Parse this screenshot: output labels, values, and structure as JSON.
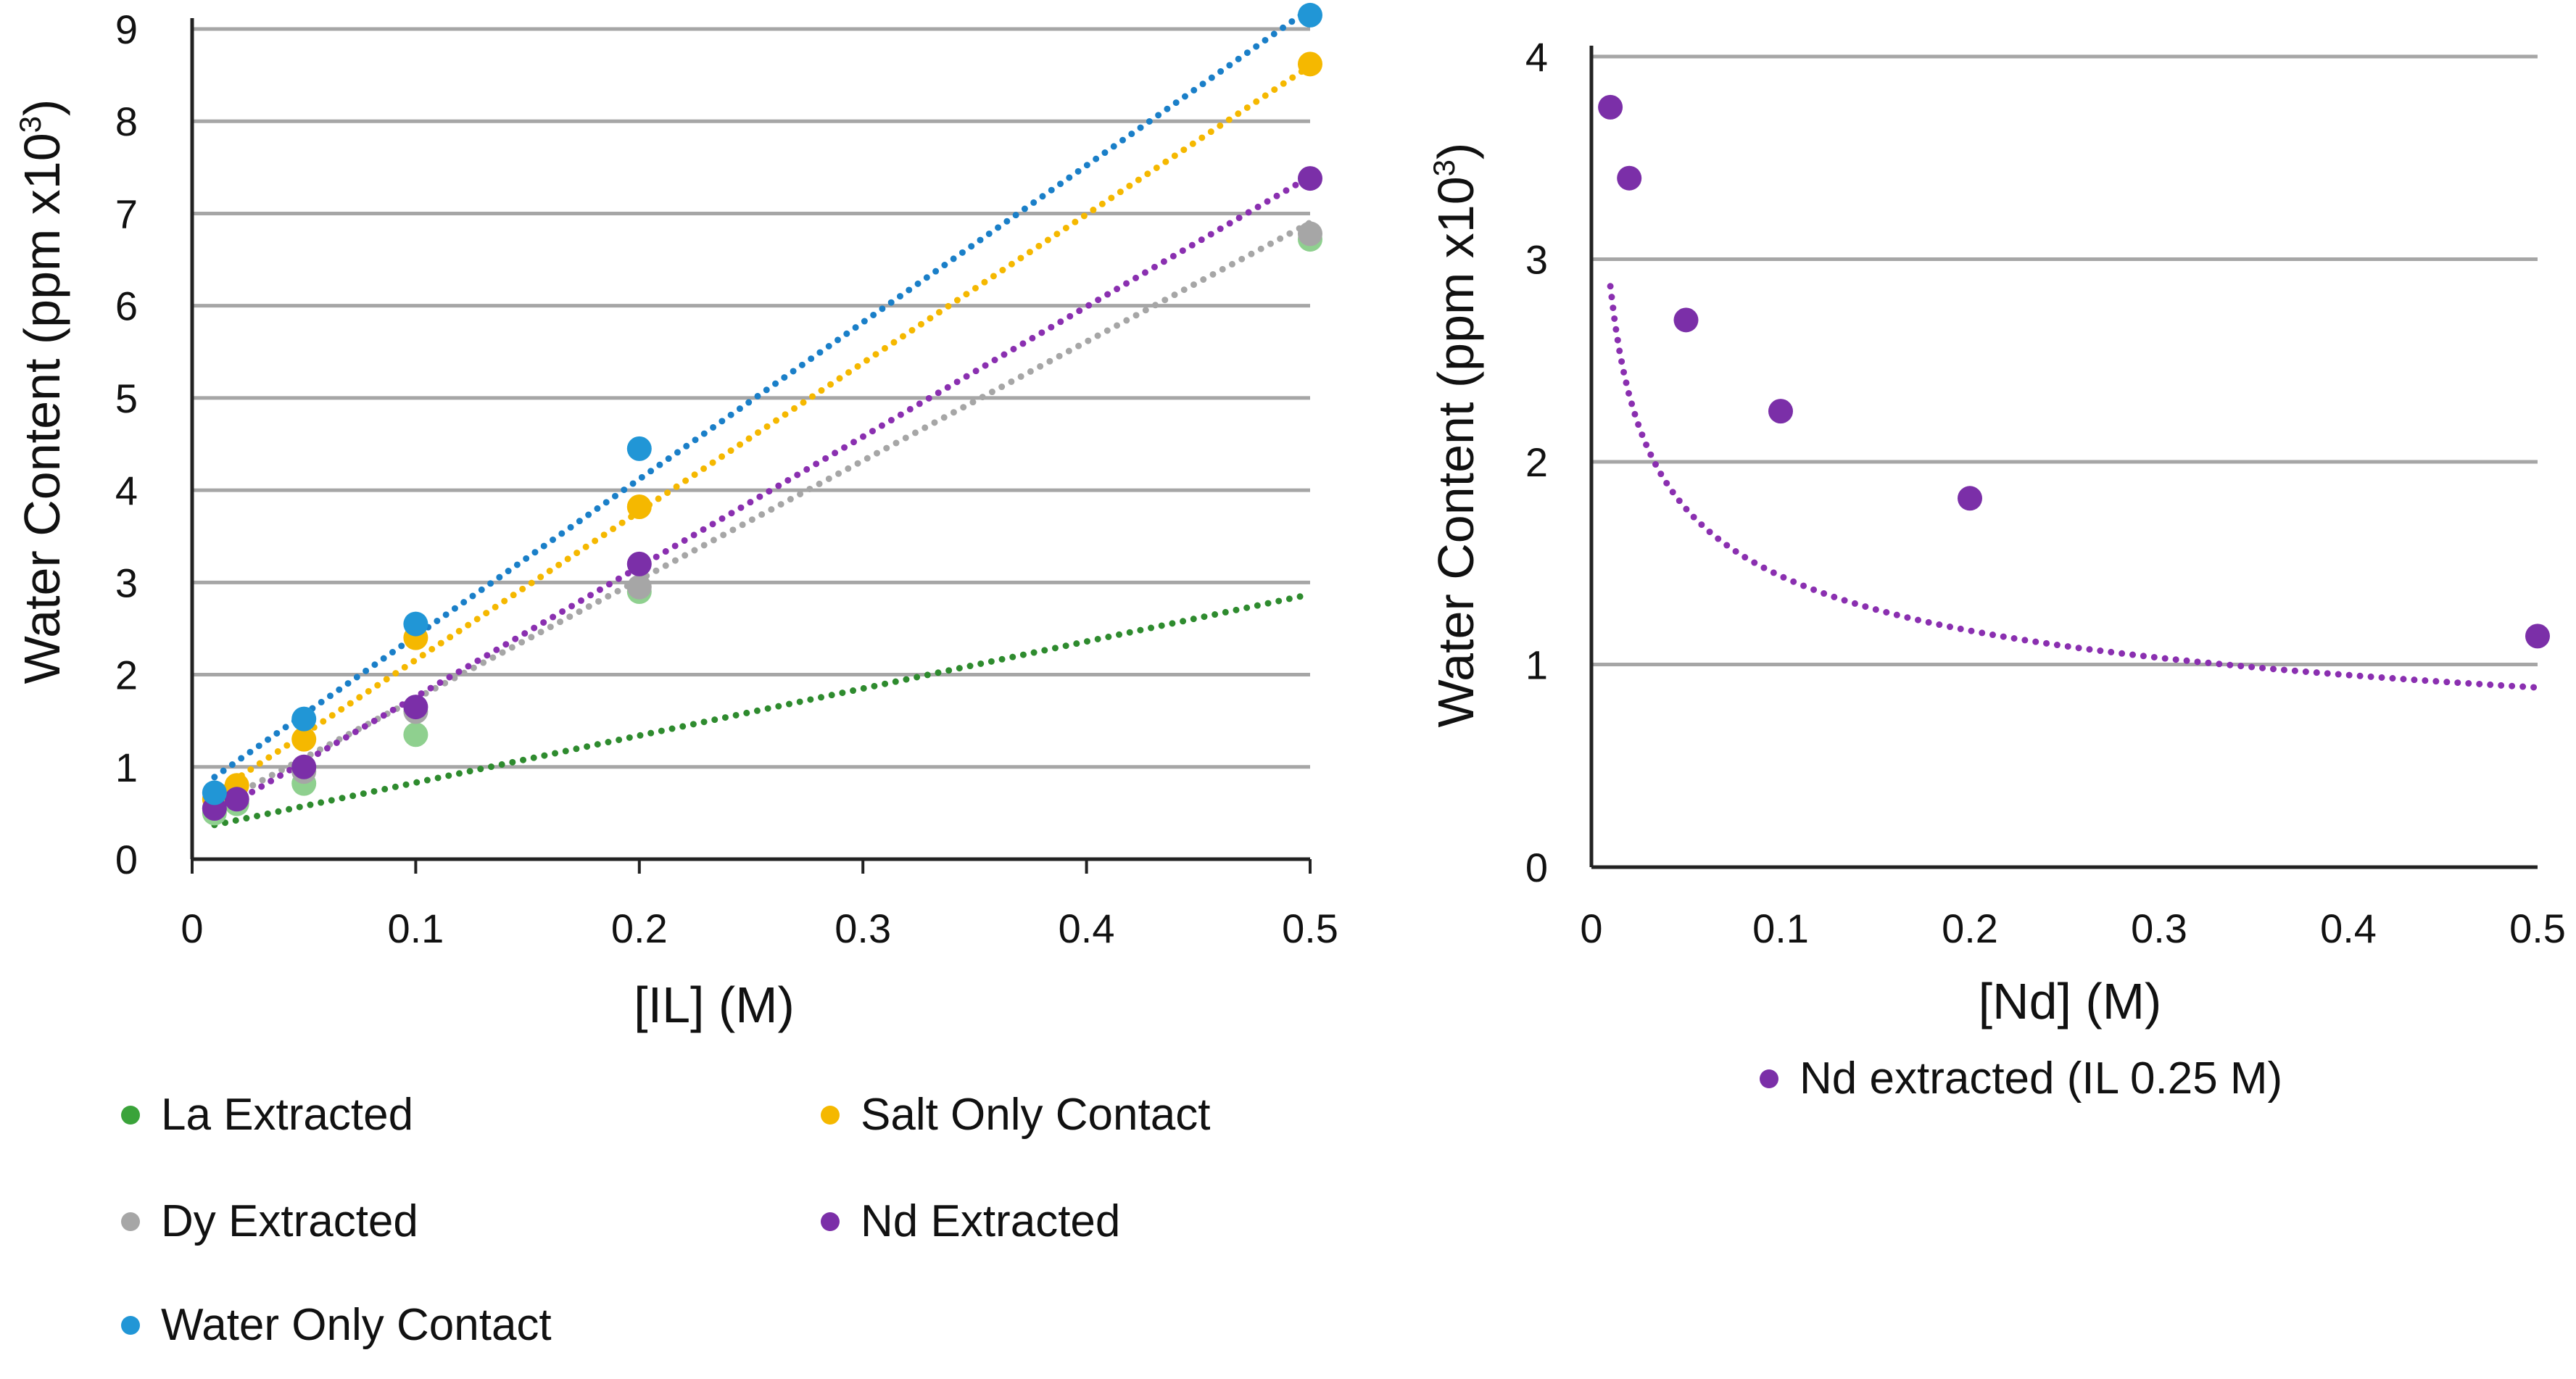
{
  "chart_data": [
    {
      "type": "scatter",
      "trendline": "linear",
      "xlabel": "[IL] (M)",
      "ylabel_main": "Water Content (ppm x10",
      "ylabel_exp": "3",
      "ylabel_close": ")",
      "xlim": [
        0,
        0.5
      ],
      "ylim": [
        0,
        9
      ],
      "x_ticks": [
        "0",
        "0.1",
        "0.2",
        "0.3",
        "0.4",
        "0.5"
      ],
      "y_ticks": [
        "0",
        "1",
        "2",
        "3",
        "4",
        "5",
        "6",
        "7",
        "8",
        "9"
      ],
      "grid": true,
      "legend_position": "bottom",
      "series": [
        {
          "name": "La Extracted",
          "color": "#3aa33a",
          "marker_color": "#8fd08f",
          "line_color": "#2e8b2e",
          "x": [
            0.01,
            0.02,
            0.05,
            0.1,
            0.2,
            0.5
          ],
          "y": [
            0.5,
            0.6,
            0.82,
            1.35,
            2.9,
            6.72
          ],
          "fit": [
            5.1,
            0.32
          ]
        },
        {
          "name": "Salt Only Contact",
          "color": "#f5b800",
          "marker_color": "#f5b800",
          "line_color": "#f5b800",
          "x": [
            0.01,
            0.02,
            0.05,
            0.1,
            0.2,
            0.5
          ],
          "y": [
            0.65,
            0.8,
            1.3,
            2.4,
            3.82,
            8.62
          ],
          "fit": [
            16.1,
            0.55
          ]
        },
        {
          "name": "Dy Extracted",
          "color": "#a6a6a6",
          "marker_color": "#a6a6a6",
          "line_color": "#a6a6a6",
          "x": [
            0.01,
            0.02,
            0.05,
            0.1,
            0.2,
            0.5
          ],
          "y": [
            0.55,
            0.65,
            0.95,
            1.6,
            2.95,
            6.78
          ],
          "fit": [
            12.9,
            0.45
          ]
        },
        {
          "name": "Nd Extracted",
          "color": "#7b2fa8",
          "marker_color": "#7b2fa8",
          "line_color": "#8a2fb0",
          "x": [
            0.01,
            0.02,
            0.05,
            0.1,
            0.2,
            0.5
          ],
          "y": [
            0.55,
            0.65,
            1.0,
            1.65,
            3.2,
            7.38
          ],
          "fit": [
            14.1,
            0.35
          ]
        },
        {
          "name": "Water Only Contact",
          "color": "#2196d6",
          "marker_color": "#2196d6",
          "line_color": "#1a7fc8",
          "x": [
            0.01,
            0.05,
            0.1,
            0.2,
            0.5
          ],
          "y": [
            0.72,
            1.52,
            2.55,
            4.45,
            9.15
          ],
          "fit": [
            17.0,
            0.72
          ]
        }
      ]
    },
    {
      "type": "scatter",
      "trendline": "power",
      "xlabel": "[Nd] (M)",
      "ylabel_main": "Water Content (ppm x10",
      "ylabel_exp": "3",
      "ylabel_close": ")",
      "xlim": [
        0,
        0.5
      ],
      "ylim": [
        0,
        4
      ],
      "x_ticks": [
        "0",
        "0.1",
        "0.2",
        "0.3",
        "0.4",
        "0.5"
      ],
      "y_ticks": [
        "0",
        "1",
        "2",
        "3",
        "4"
      ],
      "grid": true,
      "legend_position": "bottom",
      "series": [
        {
          "name": "Nd extracted (IL 0.25 M)",
          "color": "#7b2fa8",
          "marker_color": "#7b2fa8",
          "line_color": "#8a2fb0",
          "x": [
            0.01,
            0.02,
            0.05,
            0.1,
            0.2,
            0.5
          ],
          "y": [
            3.75,
            3.4,
            2.7,
            2.25,
            1.82,
            1.14
          ],
          "fit": [
            0.72,
            -0.3
          ]
        }
      ]
    }
  ]
}
